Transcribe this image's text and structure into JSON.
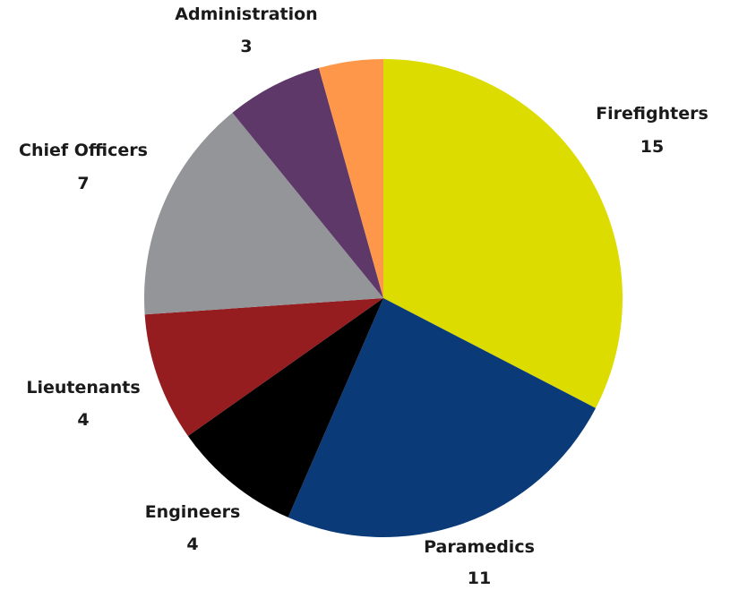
{
  "chart_data": {
    "type": "pie",
    "title": "",
    "start_angle_deg": 0,
    "direction": "clockwise",
    "slices": [
      {
        "label": "Firefighters",
        "value": 15,
        "color": "#dcdc00"
      },
      {
        "label": "Paramedics",
        "value": 11,
        "color": "#0b3a78"
      },
      {
        "label": "Engineers",
        "value": 4,
        "color": "#000000"
      },
      {
        "label": "Lieutenants",
        "value": 4,
        "color": "#951c1f"
      },
      {
        "label": "Chief Officers",
        "value": 7,
        "color": "#939598"
      },
      {
        "label": "Administration",
        "value": 3,
        "color": "#5d3869"
      },
      {
        "label": "",
        "value": 2,
        "color": "#ff974a"
      }
    ]
  }
}
